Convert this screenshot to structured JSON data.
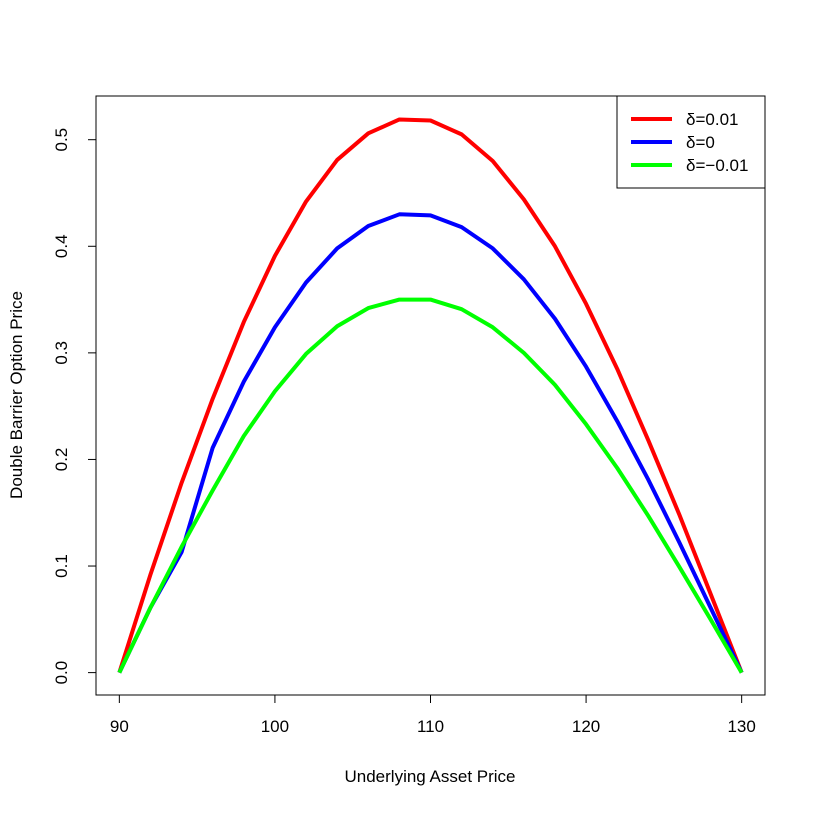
{
  "chart_data": {
    "type": "line",
    "title": "",
    "xlabel": "Underlying Asset Price",
    "ylabel": "Double Barrier Option Price",
    "xlim": [
      88.5,
      131.5
    ],
    "ylim": [
      -0.021,
      0.541
    ],
    "xticks": [
      90,
      100,
      110,
      120,
      130
    ],
    "xtick_labels": [
      "90",
      "100",
      "110",
      "120",
      "130"
    ],
    "yticks": [
      0.0,
      0.1,
      0.2,
      0.3,
      0.4,
      0.5
    ],
    "ytick_labels": [
      "0.0",
      "0.1",
      "0.2",
      "0.3",
      "0.4",
      "0.5"
    ],
    "grid": false,
    "legend_position": "top-right",
    "x": [
      90,
      92,
      94,
      96,
      98,
      100,
      102,
      104,
      106,
      108,
      110,
      112,
      114,
      116,
      118,
      120,
      122,
      124,
      126,
      128,
      130
    ],
    "series": [
      {
        "name": "δ=0.01",
        "color": "#ff0000",
        "values": [
          0.0,
          0.092,
          0.178,
          0.257,
          0.329,
          0.391,
          0.442,
          0.481,
          0.506,
          0.519,
          0.518,
          0.505,
          0.48,
          0.444,
          0.4,
          0.346,
          0.285,
          0.218,
          0.148,
          0.074,
          0.0
        ]
      },
      {
        "name": "δ=0",
        "color": "#0000ff",
        "values": [
          0.0,
          0.061,
          0.113,
          0.211,
          0.273,
          0.324,
          0.366,
          0.398,
          0.419,
          0.43,
          0.429,
          0.418,
          0.398,
          0.369,
          0.332,
          0.287,
          0.236,
          0.181,
          0.122,
          0.061,
          0.0
        ]
      },
      {
        "name": "δ=−0.01",
        "color": "#00ff00",
        "values": [
          0.0,
          0.061,
          0.118,
          0.171,
          0.222,
          0.264,
          0.299,
          0.325,
          0.342,
          0.35,
          0.35,
          0.341,
          0.324,
          0.3,
          0.27,
          0.233,
          0.192,
          0.147,
          0.099,
          0.05,
          0.0
        ]
      }
    ]
  }
}
